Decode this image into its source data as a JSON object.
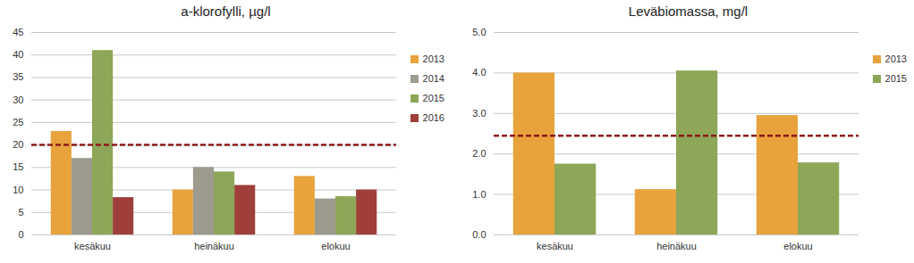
{
  "chart_data": [
    {
      "type": "bar",
      "title": "a-klorofylli, µg/l",
      "categories": [
        "kesäkuu",
        "heinäkuu",
        "elokuu"
      ],
      "series": [
        {
          "name": "2013",
          "color": "#E8A33C",
          "values": [
            23,
            10,
            13
          ]
        },
        {
          "name": "2014",
          "color": "#9D9A8E",
          "values": [
            17,
            15,
            8
          ]
        },
        {
          "name": "2015",
          "color": "#8DA657",
          "values": [
            41,
            14,
            8.5
          ]
        },
        {
          "name": "2016",
          "color": "#9E3F3A",
          "values": [
            8.3,
            11,
            10
          ]
        }
      ],
      "reference_line": 20,
      "ylim": [
        0,
        45
      ],
      "yticks": [
        0,
        5,
        10,
        15,
        20,
        25,
        30,
        35,
        40,
        45
      ],
      "grid": true,
      "legend": "right"
    },
    {
      "type": "bar",
      "title": "Leväbiomassa, mg/l",
      "categories": [
        "kesäkuu",
        "heinäkuu",
        "elokuu"
      ],
      "series": [
        {
          "name": "2013",
          "color": "#E8A33C",
          "values": [
            4.0,
            1.12,
            2.95
          ]
        },
        {
          "name": "2015",
          "color": "#8DA657",
          "values": [
            1.75,
            4.05,
            1.78
          ]
        }
      ],
      "reference_line": 2.45,
      "ylim": [
        0,
        5
      ],
      "yticks": [
        0,
        1,
        2,
        3,
        4,
        5
      ],
      "grid": true,
      "legend": "right"
    }
  ]
}
